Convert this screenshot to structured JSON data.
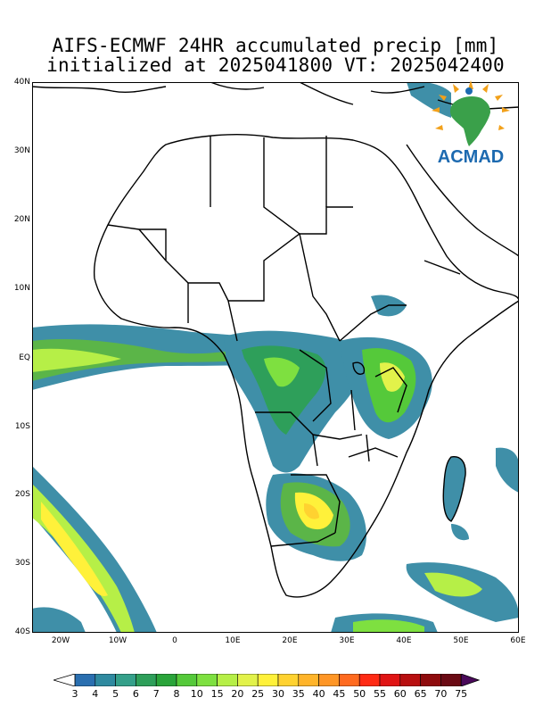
{
  "title": {
    "line1": "AIFS-ECMWF 24HR accumulated precip [mm]",
    "line2": "initialized at 2025041800 VT: 2025042400"
  },
  "logo_text": "ACMAD",
  "y_ticks": [
    "40N",
    "30N",
    "20N",
    "10N",
    "EQ",
    "10S",
    "20S",
    "30S",
    "40S"
  ],
  "x_ticks": [
    "20W",
    "10W",
    "0",
    "10E",
    "20E",
    "30E",
    "40E",
    "50E",
    "60E"
  ],
  "colorbar": {
    "labels": [
      "3",
      "4",
      "5",
      "6",
      "7",
      "8",
      "10",
      "15",
      "20",
      "25",
      "30",
      "35",
      "40",
      "45",
      "50",
      "55",
      "60",
      "65",
      "70",
      "75"
    ],
    "colors": [
      "#2a6fb0",
      "#2f8aa0",
      "#35a08a",
      "#2e9f5a",
      "#2aa43a",
      "#55c93a",
      "#7ee040",
      "#b6ef47",
      "#e2f24a",
      "#fff13a",
      "#ffd230",
      "#ffb42a",
      "#ff9626",
      "#ff6a1f",
      "#ff2a14",
      "#e01414",
      "#b80f10",
      "#8e0b0d",
      "#6a0a14",
      "#4a0a5a"
    ]
  },
  "colors": {
    "low_rain": "#3f8fa8",
    "mid_rain": "#5bb548",
    "high_rain": "#e8f24a",
    "outline": "#000000"
  }
}
